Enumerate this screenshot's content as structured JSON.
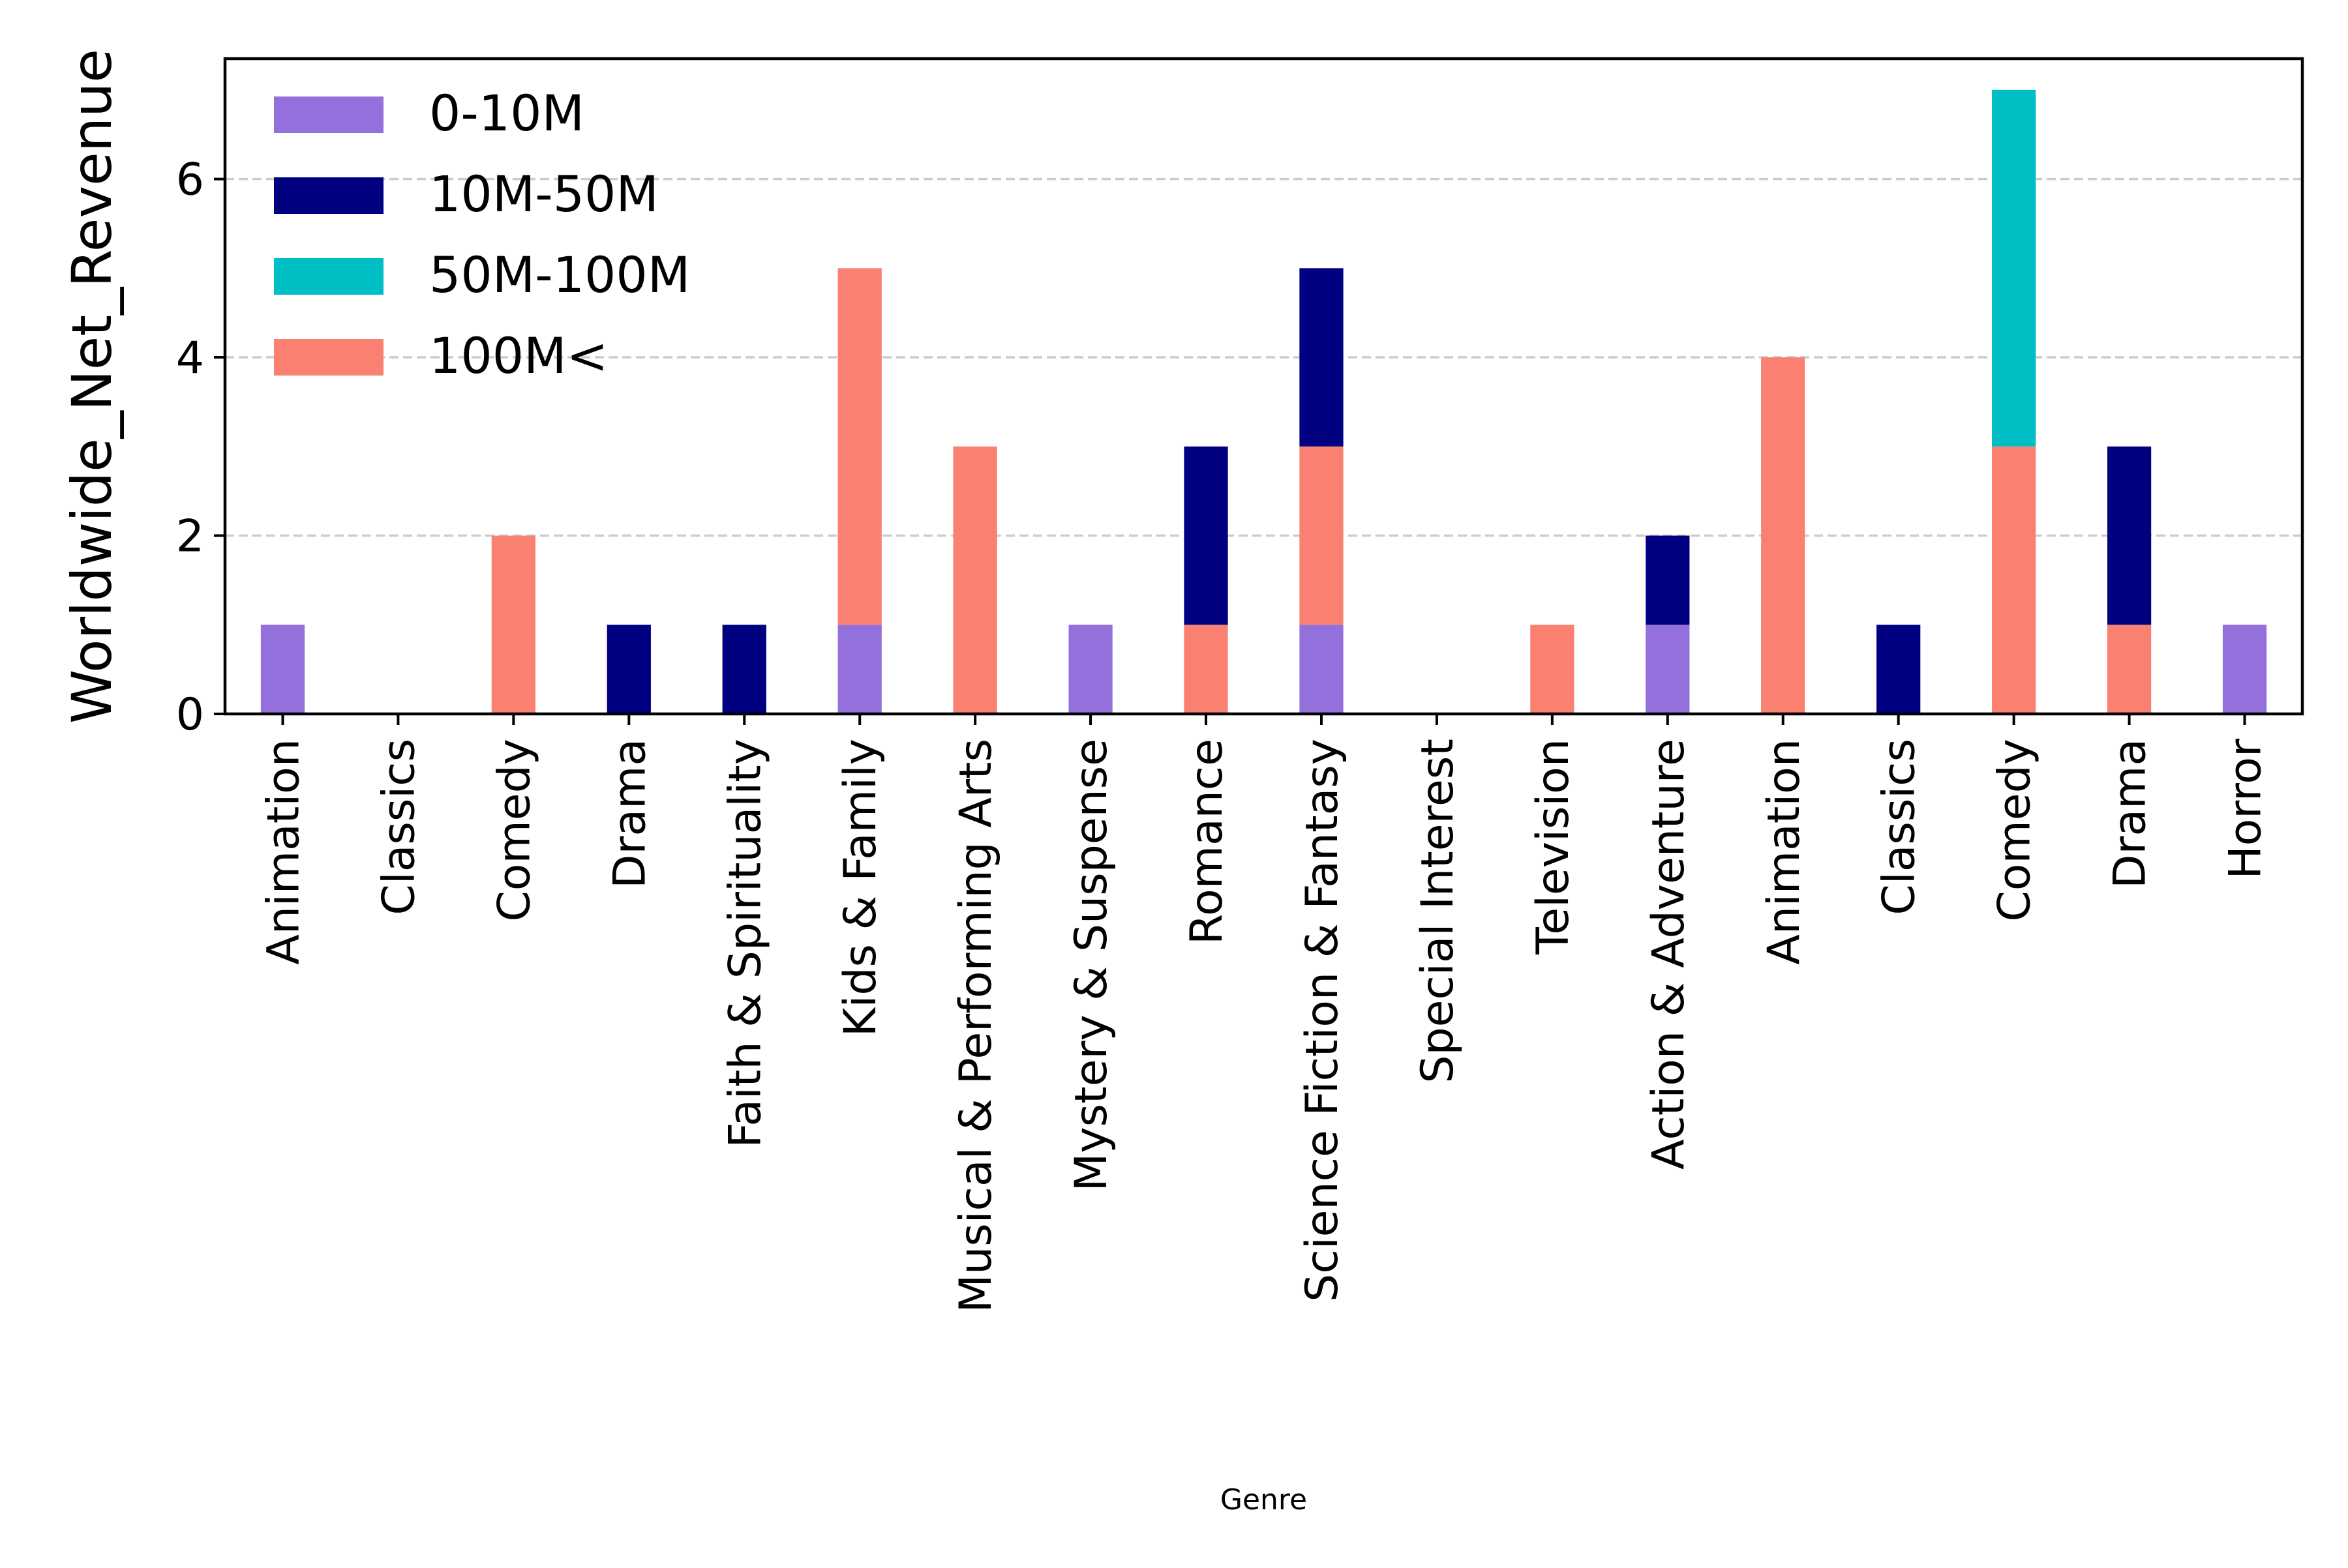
{
  "chart_data": {
    "type": "bar",
    "stacked": true,
    "title": "",
    "xlabel": "Genre",
    "ylabel": "Worldwide_Net_Revenue",
    "ylim": [
      0,
      7.35
    ],
    "yticks": [
      0,
      2,
      4,
      6
    ],
    "grid": "y-dashed",
    "legend_position": "top-left",
    "categories": [
      "Animation",
      "Classics",
      "Comedy",
      "Drama",
      "Faith & Spirituality",
      "Kids & Family",
      "Musical & Performing Arts",
      "Mystery & Suspense",
      "Romance",
      "Science Fiction & Fantasy",
      "Special Interest",
      "Television",
      "Action & Adventure",
      "Animation",
      "Classics",
      "Comedy",
      "Drama",
      "Horror"
    ],
    "series": [
      {
        "name": "0-10M",
        "color": "#9370db",
        "values": [
          1,
          0,
          0,
          0,
          0,
          1,
          0,
          1,
          0,
          1,
          0,
          0,
          1,
          0,
          0,
          0,
          0,
          1
        ]
      },
      {
        "name": "100M<",
        "color": "#fa8072",
        "values": [
          0,
          0,
          2,
          0,
          0,
          4,
          3,
          0,
          1,
          2,
          0,
          1,
          0,
          4,
          0,
          3,
          1,
          0
        ]
      },
      {
        "name": "10M-50M",
        "color": "#000080",
        "values": [
          0,
          0,
          0,
          1,
          1,
          0,
          0,
          0,
          2,
          2,
          0,
          0,
          1,
          0,
          1,
          0,
          2,
          0
        ]
      },
      {
        "name": "50M-100M",
        "color": "#00bfc4",
        "values": [
          0,
          0,
          0,
          0,
          0,
          0,
          0,
          0,
          0,
          0,
          0,
          0,
          0,
          0,
          0,
          4,
          0,
          0
        ]
      }
    ],
    "legend_order": [
      "0-10M",
      "10M-50M",
      "50M-100M",
      "100M<"
    ]
  }
}
